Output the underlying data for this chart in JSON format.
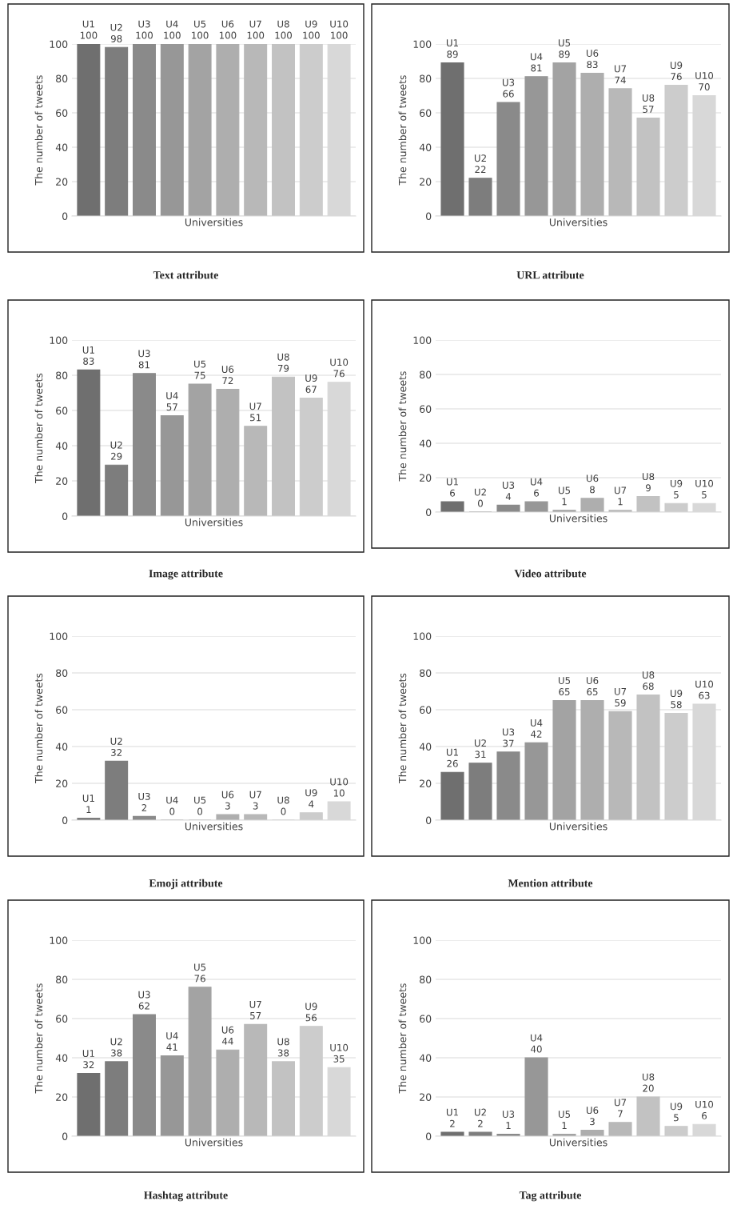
{
  "chart_data": [
    {
      "type": "bar",
      "title": "Text attribute",
      "xlabel": "Universities",
      "ylabel": "The number of tweets",
      "categories": [
        "U1",
        "U2",
        "U3",
        "U4",
        "U5",
        "U6",
        "U7",
        "U8",
        "U9",
        "U10"
      ],
      "values": [
        100,
        98,
        100,
        100,
        100,
        100,
        100,
        100,
        100,
        100
      ],
      "colors": [
        "#6f6f6f",
        "#7d7d7d",
        "#8a8a8a",
        "#979797",
        "#a3a3a3",
        "#aeaeae",
        "#b8b8b8",
        "#c2c2c2",
        "#cccccc",
        "#d8d8d8"
      ],
      "ylim": [
        0,
        100
      ],
      "yticks": [
        0,
        20,
        40,
        60,
        80,
        100
      ],
      "grid": "y",
      "tick_labels": "y",
      "data_labels": true
    },
    {
      "type": "bar",
      "title": "URL attribute",
      "xlabel": "Universities",
      "ylabel": "The number of tweets",
      "categories": [
        "U1",
        "U2",
        "U3",
        "U4",
        "U5",
        "U6",
        "U7",
        "U8",
        "U9",
        "U10"
      ],
      "values": [
        89,
        22,
        66,
        81,
        89,
        83,
        74,
        57,
        76,
        70
      ],
      "colors": [
        "#6f6f6f",
        "#7d7d7d",
        "#8a8a8a",
        "#979797",
        "#a3a3a3",
        "#aeaeae",
        "#b8b8b8",
        "#c2c2c2",
        "#cccccc",
        "#d8d8d8"
      ],
      "ylim": [
        0,
        100
      ],
      "yticks": [
        0,
        20,
        40,
        60,
        80,
        100
      ],
      "grid": "y",
      "tick_labels": "y",
      "data_labels": true
    },
    {
      "type": "bar",
      "title": "Image attribute",
      "xlabel": "Universities",
      "ylabel": "The number of tweets",
      "categories": [
        "U1",
        "U2",
        "U3",
        "U4",
        "U5",
        "U6",
        "U7",
        "U8",
        "U9",
        "U10"
      ],
      "values": [
        83,
        29,
        81,
        57,
        75,
        72,
        51,
        79,
        67,
        76
      ],
      "colors": [
        "#6f6f6f",
        "#7d7d7d",
        "#8a8a8a",
        "#979797",
        "#a3a3a3",
        "#aeaeae",
        "#b8b8b8",
        "#c2c2c2",
        "#cccccc",
        "#d8d8d8"
      ],
      "ylim": [
        0,
        100
      ],
      "yticks": [
        0,
        20,
        40,
        60,
        80,
        100
      ],
      "grid": "y",
      "tick_labels": "y",
      "data_labels": true
    },
    {
      "type": "bar",
      "title": "Video attribute",
      "xlabel": "Universities",
      "ylabel": "The number of tweets",
      "categories": [
        "U1",
        "U2",
        "U3",
        "U4",
        "U5",
        "U6",
        "U7",
        "U8",
        "U9",
        "U10"
      ],
      "values": [
        6,
        0,
        4,
        6,
        1,
        8,
        1,
        9,
        5,
        5
      ],
      "colors": [
        "#6f6f6f",
        "#7d7d7d",
        "#8a8a8a",
        "#979797",
        "#a3a3a3",
        "#aeaeae",
        "#b8b8b8",
        "#c2c2c2",
        "#cccccc",
        "#d8d8d8"
      ],
      "ylim": [
        0,
        100
      ],
      "yticks": [
        0,
        20,
        40,
        60,
        80,
        100
      ],
      "grid": "y",
      "tick_labels": "y",
      "data_labels": true
    },
    {
      "type": "bar",
      "title": "Emoji attribute",
      "xlabel": "Universities",
      "ylabel": "The number of tweets",
      "categories": [
        "U1",
        "U2",
        "U3",
        "U4",
        "U5",
        "U6",
        "U7",
        "U8",
        "U9",
        "U10"
      ],
      "values": [
        1,
        32,
        2,
        0,
        0,
        3,
        3,
        0,
        4,
        10
      ],
      "colors": [
        "#6f6f6f",
        "#7d7d7d",
        "#8a8a8a",
        "#979797",
        "#a3a3a3",
        "#aeaeae",
        "#b8b8b8",
        "#c2c2c2",
        "#cccccc",
        "#d8d8d8"
      ],
      "ylim": [
        0,
        100
      ],
      "yticks": [
        0,
        20,
        40,
        60,
        80,
        100
      ],
      "grid": "y",
      "tick_labels": "y",
      "data_labels": true
    },
    {
      "type": "bar",
      "title": "Mention attribute",
      "xlabel": "Universities",
      "ylabel": "The number of tweets",
      "categories": [
        "U1",
        "U2",
        "U3",
        "U4",
        "U5",
        "U6",
        "U7",
        "U8",
        "U9",
        "U10"
      ],
      "values": [
        26,
        31,
        37,
        42,
        65,
        65,
        59,
        68,
        58,
        63
      ],
      "colors": [
        "#6f6f6f",
        "#7d7d7d",
        "#8a8a8a",
        "#979797",
        "#a3a3a3",
        "#aeaeae",
        "#b8b8b8",
        "#c2c2c2",
        "#cccccc",
        "#d8d8d8"
      ],
      "ylim": [
        0,
        100
      ],
      "yticks": [
        0,
        20,
        40,
        60,
        80,
        100
      ],
      "grid": "y",
      "tick_labels": "y",
      "data_labels": true
    },
    {
      "type": "bar",
      "title": "Hashtag attribute",
      "xlabel": "Universities",
      "ylabel": "The number of tweets",
      "categories": [
        "U1",
        "U2",
        "U3",
        "U4",
        "U5",
        "U6",
        "U7",
        "U8",
        "U9",
        "U10"
      ],
      "values": [
        32,
        38,
        62,
        41,
        76,
        44,
        57,
        38,
        56,
        35
      ],
      "colors": [
        "#6f6f6f",
        "#7d7d7d",
        "#8a8a8a",
        "#979797",
        "#a3a3a3",
        "#aeaeae",
        "#b8b8b8",
        "#c2c2c2",
        "#cccccc",
        "#d8d8d8"
      ],
      "ylim": [
        0,
        100
      ],
      "yticks": [
        0,
        20,
        40,
        60,
        80,
        100
      ],
      "grid": "y",
      "tick_labels": "y",
      "data_labels": true
    },
    {
      "type": "bar",
      "title": "Tag attribute",
      "xlabel": "Universities",
      "ylabel": "The number of tweets",
      "categories": [
        "U1",
        "U2",
        "U3",
        "U4",
        "U5",
        "U6",
        "U7",
        "U8",
        "U9",
        "U10"
      ],
      "values": [
        2,
        2,
        1,
        40,
        1,
        3,
        7,
        20,
        5,
        6
      ],
      "colors": [
        "#6f6f6f",
        "#7d7d7d",
        "#8a8a8a",
        "#979797",
        "#a3a3a3",
        "#aeaeae",
        "#b8b8b8",
        "#c2c2c2",
        "#cccccc",
        "#d8d8d8"
      ],
      "ylim": [
        0,
        100
      ],
      "yticks": [
        0,
        20,
        40,
        60,
        80,
        100
      ],
      "grid": "y",
      "tick_labels": "y",
      "data_labels": true
    }
  ]
}
